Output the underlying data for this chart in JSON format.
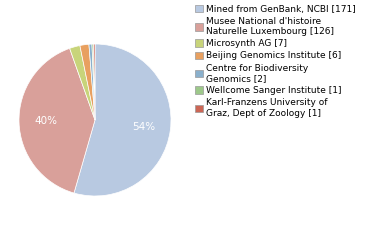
{
  "labels": [
    "Mined from GenBank, NCBI [171]",
    "Musee National d'histoire\nNaturelle Luxembourg [126]",
    "Microsynth AG [7]",
    "Beijing Genomics Institute [6]",
    "Centre for Biodiversity\nGenomics [2]",
    "Wellcome Sanger Institute [1]",
    "Karl-Franzens University of\nGraz, Dept of Zoology [1]"
  ],
  "values": [
    171,
    126,
    7,
    6,
    2,
    1,
    1
  ],
  "colors": [
    "#b8c9e1",
    "#d9a09a",
    "#c8d47a",
    "#e8a060",
    "#8ab0cc",
    "#9dc88a",
    "#cc6655"
  ],
  "startangle": 90,
  "legend_fontsize": 6.5,
  "figure_bg": "#ffffff",
  "pct_distance": 0.65
}
